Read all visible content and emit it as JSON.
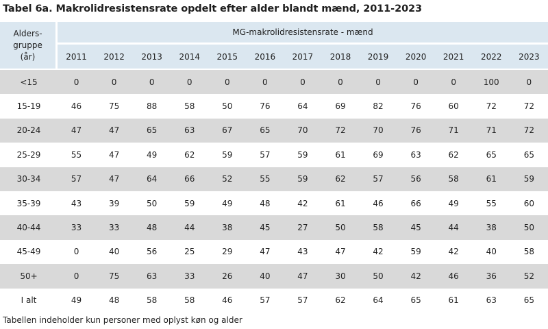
{
  "title": "Tabel 6a. Makrolidresistensrate opdelt efter alder blandt mænd, 2011-2023",
  "header": {
    "age_group_line1": "Alders-",
    "age_group_line2": "gruppe",
    "age_group_line3": "(år)",
    "metric": "MG-makrolidresistensrate - mænd",
    "years": [
      "2011",
      "2012",
      "2013",
      "2014",
      "2015",
      "2016",
      "2017",
      "2018",
      "2019",
      "2020",
      "2021",
      "2022",
      "2023"
    ]
  },
  "rows": [
    {
      "age": "<15",
      "values": [
        "0",
        "0",
        "0",
        "0",
        "0",
        "0",
        "0",
        "0",
        "0",
        "0",
        "0",
        "100",
        "0"
      ]
    },
    {
      "age": "15-19",
      "values": [
        "46",
        "75",
        "88",
        "58",
        "50",
        "76",
        "64",
        "69",
        "82",
        "76",
        "60",
        "72",
        "72"
      ]
    },
    {
      "age": "20-24",
      "values": [
        "47",
        "47",
        "65",
        "63",
        "67",
        "65",
        "70",
        "72",
        "70",
        "76",
        "71",
        "71",
        "72"
      ]
    },
    {
      "age": "25-29",
      "values": [
        "55",
        "47",
        "49",
        "62",
        "59",
        "57",
        "59",
        "61",
        "69",
        "63",
        "62",
        "65",
        "65"
      ]
    },
    {
      "age": "30-34",
      "values": [
        "57",
        "47",
        "64",
        "66",
        "52",
        "55",
        "59",
        "62",
        "57",
        "56",
        "58",
        "61",
        "59"
      ]
    },
    {
      "age": "35-39",
      "values": [
        "43",
        "39",
        "50",
        "59",
        "49",
        "48",
        "42",
        "61",
        "46",
        "66",
        "49",
        "55",
        "60"
      ]
    },
    {
      "age": "40-44",
      "values": [
        "33",
        "33",
        "48",
        "44",
        "38",
        "45",
        "27",
        "50",
        "58",
        "45",
        "44",
        "38",
        "50"
      ]
    },
    {
      "age": "45-49",
      "values": [
        "0",
        "40",
        "56",
        "25",
        "29",
        "47",
        "43",
        "47",
        "42",
        "59",
        "42",
        "40",
        "58"
      ]
    },
    {
      "age": "50+",
      "values": [
        "0",
        "75",
        "63",
        "33",
        "26",
        "40",
        "47",
        "30",
        "50",
        "42",
        "46",
        "36",
        "52"
      ]
    },
    {
      "age": "I alt",
      "values": [
        "49",
        "48",
        "58",
        "58",
        "46",
        "57",
        "57",
        "62",
        "64",
        "65",
        "61",
        "63",
        "65"
      ]
    }
  ],
  "footnote": "Tabellen indeholder kun personer med oplyst køn og alder"
}
